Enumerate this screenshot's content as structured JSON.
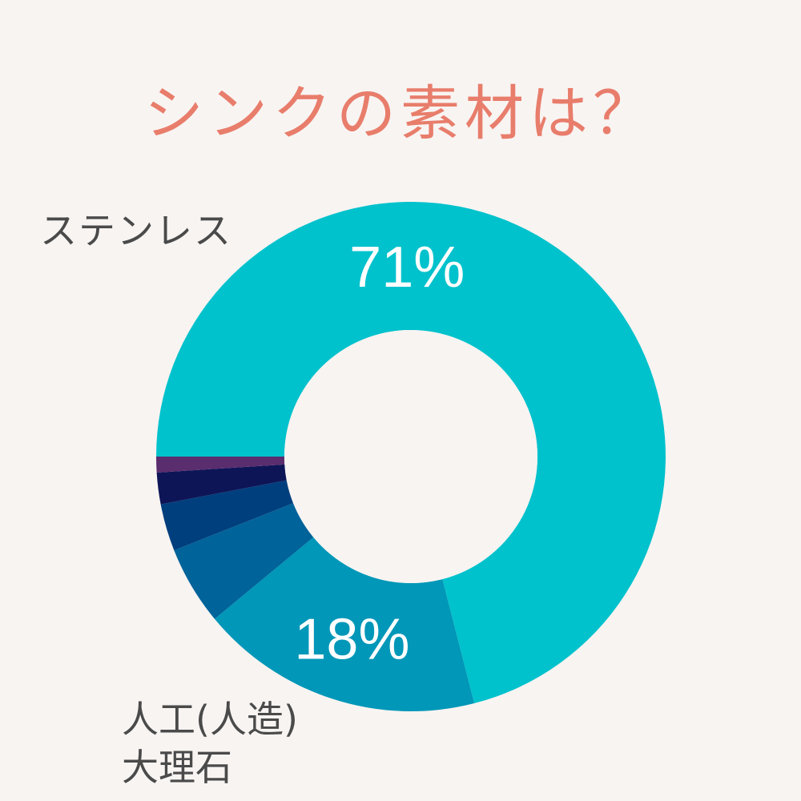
{
  "chart_data": {
    "type": "pie",
    "title": "シンクの素材は？",
    "donut": true,
    "slices": [
      {
        "label": "ステンレス",
        "value": 71,
        "value_label": "71%",
        "color": "#00c2cc"
      },
      {
        "label": "人工(人造)大理石",
        "value": 18,
        "value_label": "18%",
        "color": "#0097b8"
      },
      {
        "label": "",
        "value": 5,
        "color": "#00639a"
      },
      {
        "label": "",
        "value": 3,
        "color": "#003f7d"
      },
      {
        "label": "",
        "value": 2,
        "color": "#0d1557"
      },
      {
        "label": "",
        "value": 1,
        "color": "#5a2d6e"
      }
    ]
  },
  "labels": {
    "stainless": "ステンレス",
    "artificial_line1": "人工(人造)",
    "artificial_line2": "大理石"
  },
  "colors": {
    "background": "#f8f4f2",
    "title": "#e87d6b"
  }
}
